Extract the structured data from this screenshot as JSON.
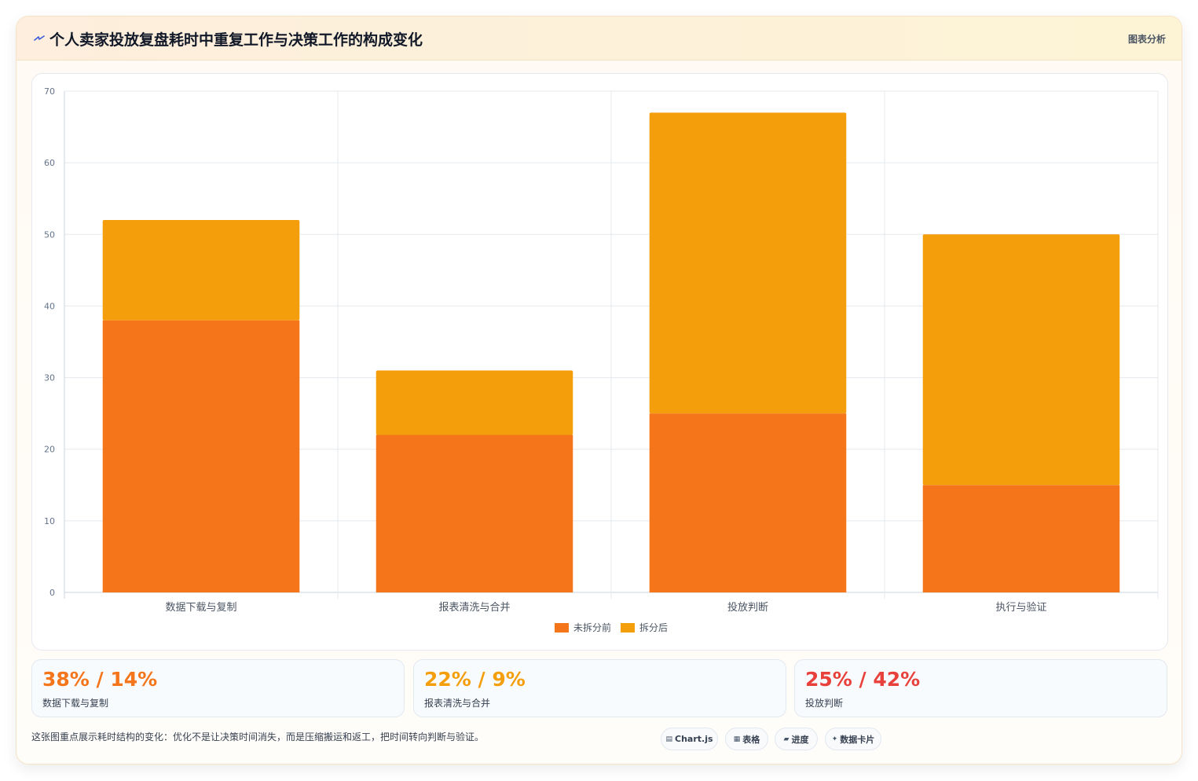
{
  "header": {
    "title": "个人卖家投放复盘耗时中重复工作与决策工作的构成变化",
    "tag": "图表分析",
    "icon": "lightning-icon"
  },
  "chart_data": {
    "type": "bar",
    "stacked": true,
    "categories": [
      "数据下载与复制",
      "报表清洗与合并",
      "投放判断",
      "执行与验证"
    ],
    "series": [
      {
        "name": "未拆分前",
        "color": "#f5761a",
        "values": [
          38,
          22,
          25,
          15
        ]
      },
      {
        "name": "拆分后",
        "color": "#f59e0b",
        "values": [
          14,
          9,
          42,
          35
        ]
      }
    ],
    "ylim": [
      0,
      70
    ],
    "yticks": [
      0,
      10,
      20,
      30,
      40,
      50,
      60,
      70
    ],
    "grid": true,
    "legend_position": "bottom"
  },
  "stats": [
    {
      "value": "38% / 14%",
      "label": "数据下载与复制",
      "color": "#f5761a"
    },
    {
      "value": "22% / 9%",
      "label": "报表清洗与合并",
      "color": "#f59e0b"
    },
    {
      "value": "25% / 42%",
      "label": "投放判断",
      "color": "#e8403a"
    }
  ],
  "footnote": "这张图重点展示耗时结构的变化：优化不是让决策时间消失，而是压缩搬运和返工，把时间转向判断与验证。",
  "chips": [
    {
      "label": "Chart.js",
      "icon": "chart-icon",
      "glyph": "▤"
    },
    {
      "label": "表格",
      "icon": "table-icon",
      "glyph": "▦"
    },
    {
      "label": "进度",
      "icon": "progress-icon",
      "glyph": "▰"
    },
    {
      "label": "数据卡片",
      "icon": "sparkle-icon",
      "glyph": "✦"
    }
  ]
}
